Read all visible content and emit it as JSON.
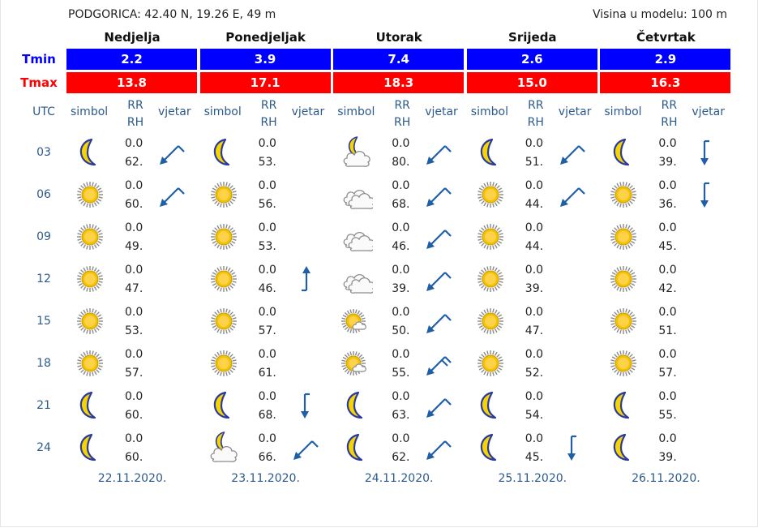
{
  "location": "PODGORICA: 42.40 N, 19.26 E, 49 m",
  "model_height": "Visina u modelu: 100 m",
  "labels": {
    "tmin": "Tmin",
    "tmax": "Tmax",
    "utc": "UTC",
    "simbol": "simbol",
    "rr": "RR",
    "rh": "RH",
    "vjetar": "vjetar"
  },
  "colors": {
    "tmin": "#0000ff",
    "tmax": "#ff0000",
    "header_text": "#2c5a8a"
  },
  "hours": [
    "03",
    "06",
    "09",
    "12",
    "15",
    "18",
    "21",
    "24"
  ],
  "days": [
    {
      "name": "Nedjelja",
      "tmin": "2.2",
      "tmax": "13.8",
      "date": "22.11.2020.",
      "slots": [
        {
          "icon": "moon-icon",
          "rr": "0.0",
          "rh": "62.",
          "wind": "wind-arrow-ne-icon"
        },
        {
          "icon": "sun-icon",
          "rr": "0.0",
          "rh": "60.",
          "wind": "wind-arrow-ne-icon"
        },
        {
          "icon": "sun-icon",
          "rr": "0.0",
          "rh": "49.",
          "wind": ""
        },
        {
          "icon": "sun-icon",
          "rr": "0.0",
          "rh": "47.",
          "wind": ""
        },
        {
          "icon": "sun-icon",
          "rr": "0.0",
          "rh": "53.",
          "wind": ""
        },
        {
          "icon": "sun-icon",
          "rr": "0.0",
          "rh": "57.",
          "wind": ""
        },
        {
          "icon": "moon-icon",
          "rr": "0.0",
          "rh": "60.",
          "wind": ""
        },
        {
          "icon": "moon-icon",
          "rr": "0.0",
          "rh": "60.",
          "wind": ""
        }
      ]
    },
    {
      "name": "Ponedjeljak",
      "tmin": "3.9",
      "tmax": "17.1",
      "date": "23.11.2020.",
      "slots": [
        {
          "icon": "moon-icon",
          "rr": "0.0",
          "rh": "53.",
          "wind": ""
        },
        {
          "icon": "sun-icon",
          "rr": "0.0",
          "rh": "56.",
          "wind": ""
        },
        {
          "icon": "sun-icon",
          "rr": "0.0",
          "rh": "53.",
          "wind": ""
        },
        {
          "icon": "sun-icon",
          "rr": "0.0",
          "rh": "46.",
          "wind": "wind-arrow-s-icon"
        },
        {
          "icon": "sun-icon",
          "rr": "0.0",
          "rh": "57.",
          "wind": ""
        },
        {
          "icon": "sun-icon",
          "rr": "0.0",
          "rh": "61.",
          "wind": ""
        },
        {
          "icon": "moon-icon",
          "rr": "0.0",
          "rh": "68.",
          "wind": "wind-arrow-n-icon"
        },
        {
          "icon": "moon-cloud-icon",
          "rr": "0.0",
          "rh": "66.",
          "wind": "wind-arrow-ne-icon"
        }
      ]
    },
    {
      "name": "Utorak",
      "tmin": "7.4",
      "tmax": "18.3",
      "date": "24.11.2020.",
      "slots": [
        {
          "icon": "moon-cloud-icon",
          "rr": "0.0",
          "rh": "80.",
          "wind": "wind-arrow-ne-icon"
        },
        {
          "icon": "cloud-icon",
          "rr": "0.0",
          "rh": "68.",
          "wind": "wind-arrow-ne-icon"
        },
        {
          "icon": "cloud-icon",
          "rr": "0.0",
          "rh": "46.",
          "wind": "wind-arrow-ne-icon"
        },
        {
          "icon": "cloud-icon",
          "rr": "0.0",
          "rh": "39.",
          "wind": "wind-arrow-ne-icon"
        },
        {
          "icon": "sun-cloud-icon",
          "rr": "0.0",
          "rh": "50.",
          "wind": "wind-arrow-ne-icon"
        },
        {
          "icon": "sun-cloud-icon",
          "rr": "0.0",
          "rh": "55.",
          "wind": "wind-arrow-ne-strong-icon"
        },
        {
          "icon": "moon-icon",
          "rr": "0.0",
          "rh": "63.",
          "wind": "wind-arrow-ne-icon"
        },
        {
          "icon": "moon-icon",
          "rr": "0.0",
          "rh": "62.",
          "wind": "wind-arrow-ne-icon"
        }
      ]
    },
    {
      "name": "Srijeda",
      "tmin": "2.6",
      "tmax": "15.0",
      "date": "25.11.2020.",
      "slots": [
        {
          "icon": "moon-icon",
          "rr": "0.0",
          "rh": "51.",
          "wind": "wind-arrow-ne-icon"
        },
        {
          "icon": "sun-icon",
          "rr": "0.0",
          "rh": "44.",
          "wind": "wind-arrow-ne-icon"
        },
        {
          "icon": "sun-icon",
          "rr": "0.0",
          "rh": "44.",
          "wind": ""
        },
        {
          "icon": "sun-icon",
          "rr": "0.0",
          "rh": "39.",
          "wind": ""
        },
        {
          "icon": "sun-icon",
          "rr": "0.0",
          "rh": "47.",
          "wind": ""
        },
        {
          "icon": "sun-icon",
          "rr": "0.0",
          "rh": "52.",
          "wind": ""
        },
        {
          "icon": "moon-icon",
          "rr": "0.0",
          "rh": "54.",
          "wind": ""
        },
        {
          "icon": "moon-icon",
          "rr": "0.0",
          "rh": "45.",
          "wind": "wind-arrow-n-icon"
        }
      ]
    },
    {
      "name": "Četvrtak",
      "tmin": "2.9",
      "tmax": "16.3",
      "date": "26.11.2020.",
      "slots": [
        {
          "icon": "moon-icon",
          "rr": "0.0",
          "rh": "39.",
          "wind": "wind-arrow-n-icon"
        },
        {
          "icon": "sun-icon",
          "rr": "0.0",
          "rh": "36.",
          "wind": "wind-arrow-n-icon"
        },
        {
          "icon": "sun-icon",
          "rr": "0.0",
          "rh": "45.",
          "wind": ""
        },
        {
          "icon": "sun-icon",
          "rr": "0.0",
          "rh": "42.",
          "wind": ""
        },
        {
          "icon": "sun-icon",
          "rr": "0.0",
          "rh": "51.",
          "wind": ""
        },
        {
          "icon": "sun-icon",
          "rr": "0.0",
          "rh": "57.",
          "wind": ""
        },
        {
          "icon": "moon-icon",
          "rr": "0.0",
          "rh": "55.",
          "wind": ""
        },
        {
          "icon": "moon-icon",
          "rr": "0.0",
          "rh": "39.",
          "wind": ""
        }
      ]
    }
  ]
}
